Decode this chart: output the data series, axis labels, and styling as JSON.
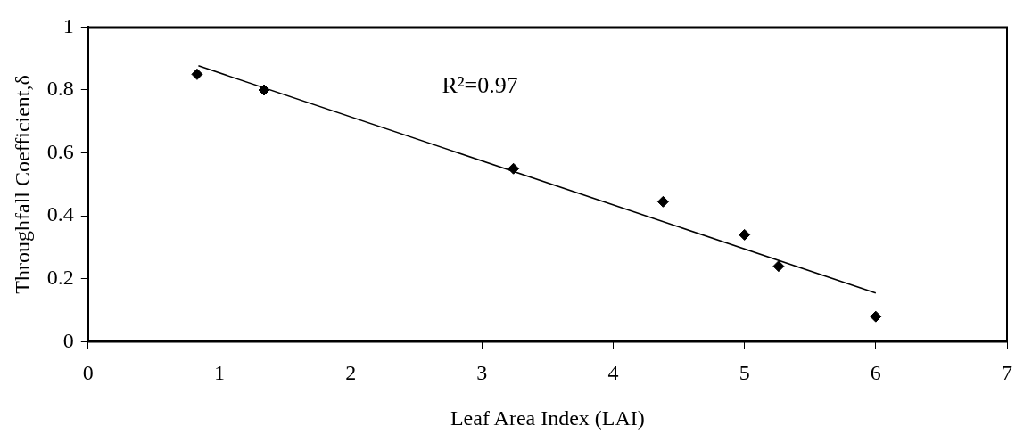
{
  "chart_data": {
    "type": "scatter",
    "xlabel": "Leaf Area Index (LAI)",
    "ylabel": "Throughfall Coefficient,δ",
    "annotations": [
      "R²=0.97"
    ],
    "xlim": [
      0,
      7
    ],
    "xticks": [
      0,
      1,
      2,
      3,
      4,
      5,
      6,
      7
    ],
    "ylim": [
      0,
      1
    ],
    "yticks": [
      0,
      0.2,
      0.4,
      0.6,
      0.8,
      1
    ],
    "grid": false,
    "legend": false,
    "marker": "diamond",
    "series": [
      {
        "type": "scatter",
        "color": "#000000",
        "x": [
          0.83,
          1.34,
          3.24,
          4.38,
          5.0,
          5.26,
          6.0
        ],
        "values": [
          0.85,
          0.8,
          0.55,
          0.445,
          0.34,
          0.24,
          0.08
        ]
      },
      {
        "type": "line",
        "color": "#000000",
        "line_style": "solid",
        "marker": "none",
        "x": [
          0.84,
          6.0
        ],
        "values": [
          0.877,
          0.155
        ]
      }
    ]
  }
}
